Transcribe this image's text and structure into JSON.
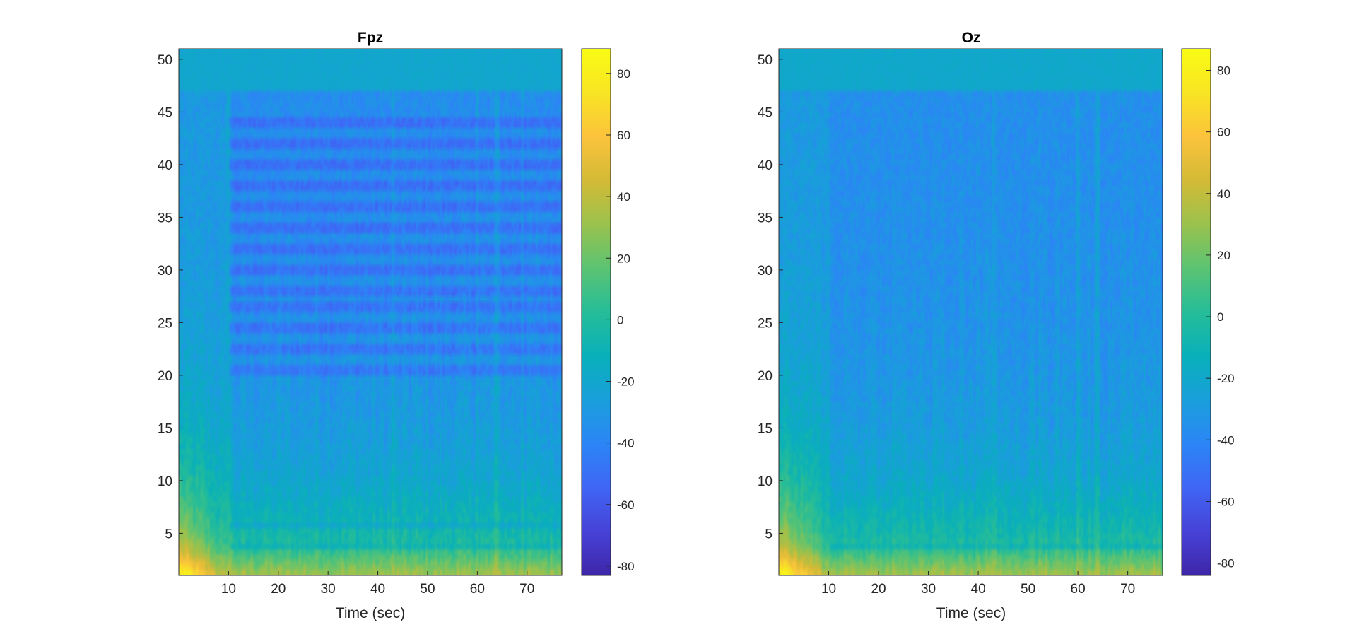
{
  "window": {
    "background": "#ffffff"
  },
  "colormap": [
    "#3e26a8",
    "#4742d8",
    "#3f66f5",
    "#2c85f6",
    "#199fdb",
    "#09b0ba",
    "#25bd98",
    "#5bc373",
    "#9ac24d",
    "#d3ba36",
    "#fcc33c",
    "#f8e523",
    "#f9fb15"
  ],
  "chart_data": [
    {
      "type": "heatmap",
      "title": "Fpz",
      "xlabel": "Time (sec)",
      "ylabel": "",
      "xlim": [
        0,
        77
      ],
      "ylim": [
        1,
        51
      ],
      "xticks": [
        10,
        20,
        30,
        40,
        50,
        60,
        70
      ],
      "yticks": [
        5,
        10,
        15,
        20,
        25,
        30,
        35,
        40,
        45,
        50
      ],
      "colorbar": {
        "ticks": [
          -80,
          -60,
          -40,
          -20,
          0,
          20,
          40,
          60,
          80
        ],
        "clim": [
          -83,
          88
        ]
      },
      "features": {
        "line_noise_cutoff_hz": 47,
        "harmonic_bands_hz": [
          44,
          42,
          40,
          38,
          36,
          34,
          32,
          30,
          28,
          26.5,
          24.5,
          22.5,
          20.5,
          5.8,
          3.8
        ],
        "vertical_artifacts_sec": [
          10,
          43,
          60,
          64,
          69
        ],
        "onset_sec": 10
      }
    },
    {
      "type": "heatmap",
      "title": "Oz",
      "xlabel": "Time (sec)",
      "ylabel": "",
      "xlim": [
        0,
        77
      ],
      "ylim": [
        1,
        51
      ],
      "xticks": [
        10,
        20,
        30,
        40,
        50,
        60,
        70
      ],
      "yticks": [
        5,
        10,
        15,
        20,
        25,
        30,
        35,
        40,
        45,
        50
      ],
      "colorbar": {
        "ticks": [
          -80,
          -60,
          -40,
          -20,
          0,
          20,
          40,
          60,
          80
        ],
        "clim": [
          -84,
          87
        ]
      },
      "features": {
        "line_noise_cutoff_hz": 47,
        "harmonic_bands_hz": [
          3.8
        ],
        "vertical_artifacts_sec": [
          43,
          60,
          64
        ],
        "onset_sec": 10
      }
    }
  ]
}
